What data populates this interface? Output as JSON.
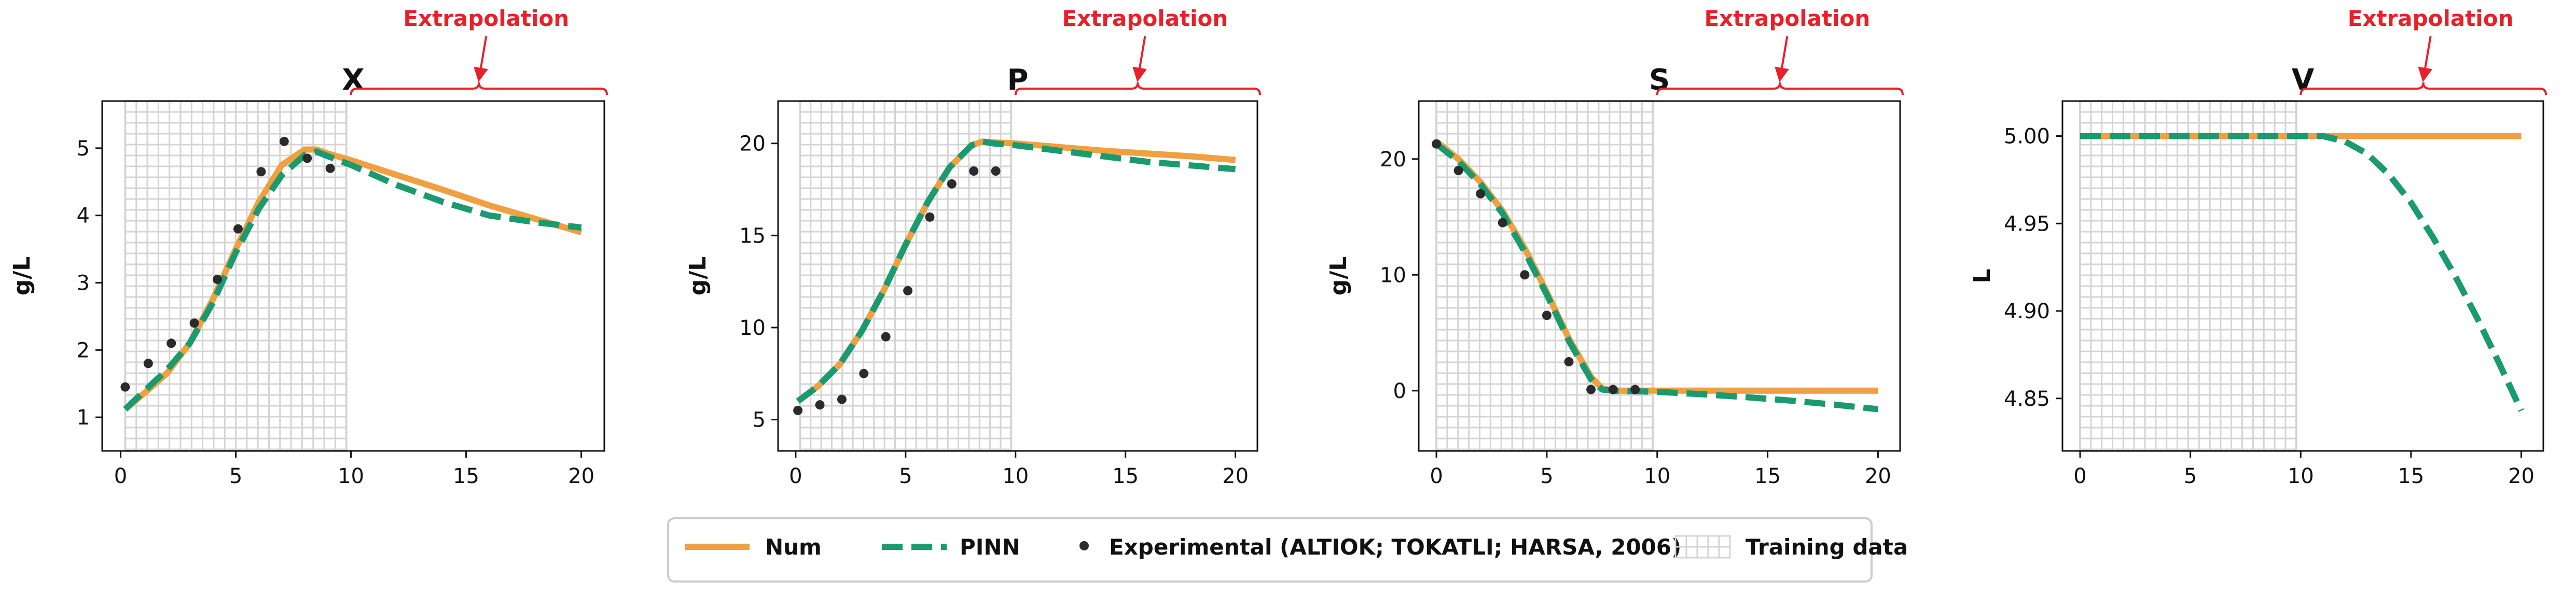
{
  "colors": {
    "num": "#f0a040",
    "pinn": "#1a9a6e",
    "experimental": "#2b2b2b",
    "training_grid": "#d4d4d4",
    "annotation": "#e8202a"
  },
  "legend": {
    "num": "Num",
    "pinn": "PINN",
    "experimental": "Experimental (ALTIOK; TOKATLI; HARSA, 2006)",
    "training": "Training data"
  },
  "annotation_label": "Extrapolation",
  "chart_data": [
    {
      "type": "line",
      "title": "X",
      "xlabel": "",
      "ylabel": "g/L",
      "xlim": [
        -0.8,
        21
      ],
      "ylim": [
        0.5,
        5.7
      ],
      "x_ticks": [
        0,
        5,
        10,
        15,
        20
      ],
      "y_ticks": [
        1,
        2,
        3,
        4,
        5
      ],
      "training_region": [
        0.2,
        9.8
      ],
      "extrapolation_region": [
        10,
        21
      ],
      "grid": "training region only",
      "series": [
        {
          "name": "Num",
          "style": "solid",
          "x": [
            0.2,
            1,
            2,
            3,
            4,
            5,
            6,
            7,
            8,
            8.5,
            9,
            10,
            12,
            14,
            16,
            18,
            20
          ],
          "y": [
            1.12,
            1.35,
            1.65,
            2.1,
            2.75,
            3.5,
            4.2,
            4.75,
            4.98,
            4.98,
            4.92,
            4.82,
            4.6,
            4.38,
            4.15,
            3.95,
            3.75
          ]
        },
        {
          "name": "PINN",
          "style": "dashed",
          "x": [
            0.2,
            1,
            2,
            3,
            4,
            5,
            6,
            7,
            8,
            8.5,
            9,
            10,
            12,
            14,
            16,
            18,
            20
          ],
          "y": [
            1.12,
            1.38,
            1.7,
            2.1,
            2.7,
            3.45,
            4.1,
            4.6,
            4.9,
            4.95,
            4.88,
            4.75,
            4.45,
            4.2,
            4.0,
            3.9,
            3.82
          ]
        },
        {
          "name": "Experimental (ALTIOK; TOKATLI; HARSA, 2006)",
          "style": "points",
          "x": [
            0.2,
            1.2,
            2.2,
            3.2,
            4.2,
            5.1,
            6.1,
            7.1,
            8.1,
            9.1
          ],
          "y": [
            1.45,
            1.8,
            2.1,
            2.4,
            3.05,
            3.8,
            4.65,
            5.1,
            4.85,
            4.7
          ]
        }
      ]
    },
    {
      "type": "line",
      "title": "P",
      "xlabel": "",
      "ylabel": "g/L",
      "xlim": [
        -0.8,
        21
      ],
      "ylim": [
        3.3,
        22.3
      ],
      "x_ticks": [
        0,
        5,
        10,
        15,
        20
      ],
      "y_ticks": [
        5,
        10,
        15,
        20
      ],
      "training_region": [
        0.2,
        9.8
      ],
      "extrapolation_region": [
        10,
        21
      ],
      "grid": "training region only",
      "series": [
        {
          "name": "Num",
          "style": "solid",
          "x": [
            0.1,
            1,
            2,
            3,
            4,
            5,
            6,
            7,
            8,
            8.5,
            9,
            10,
            12,
            14,
            16,
            18,
            20
          ],
          "y": [
            6.0,
            6.8,
            8.0,
            9.8,
            12.0,
            14.5,
            16.8,
            18.7,
            19.9,
            20.1,
            20.05,
            20.0,
            19.8,
            19.6,
            19.45,
            19.3,
            19.1
          ]
        },
        {
          "name": "PINN",
          "style": "dashed",
          "x": [
            0.1,
            1,
            2,
            3,
            4,
            5,
            6,
            7,
            8,
            8.5,
            9,
            10,
            12,
            14,
            16,
            18,
            20
          ],
          "y": [
            6.0,
            6.8,
            8.0,
            9.8,
            12.0,
            14.5,
            16.8,
            18.7,
            19.9,
            20.1,
            20.0,
            19.9,
            19.6,
            19.3,
            19.0,
            18.8,
            18.6
          ]
        },
        {
          "name": "Experimental (ALTIOK; TOKATLI; HARSA, 2006)",
          "style": "points",
          "x": [
            0.1,
            1.1,
            2.1,
            3.1,
            4.1,
            5.1,
            6.1,
            7.1,
            8.1,
            9.1
          ],
          "y": [
            5.5,
            5.8,
            6.1,
            7.5,
            9.5,
            12.0,
            16.0,
            17.8,
            18.5,
            18.5
          ]
        }
      ]
    },
    {
      "type": "line",
      "title": "S",
      "xlabel": "",
      "ylabel": "g/L",
      "xlim": [
        -0.8,
        21
      ],
      "ylim": [
        -5.2,
        25
      ],
      "x_ticks": [
        0,
        5,
        10,
        15,
        20
      ],
      "y_ticks": [
        0,
        10,
        20
      ],
      "training_region": [
        0,
        9.8
      ],
      "extrapolation_region": [
        10,
        21
      ],
      "grid": "training region only",
      "series": [
        {
          "name": "Num",
          "style": "solid",
          "x": [
            0,
            1,
            2,
            3,
            4,
            5,
            6,
            7,
            7.5,
            8,
            9,
            10,
            12,
            14,
            16,
            18,
            20
          ],
          "y": [
            21.5,
            20.0,
            18.0,
            15.5,
            12.3,
            8.5,
            4.5,
            1.2,
            0.2,
            0.0,
            0.0,
            0.0,
            0.0,
            0.0,
            0.0,
            0.0,
            0.0
          ]
        },
        {
          "name": "PINN",
          "style": "dashed",
          "x": [
            0,
            1,
            2,
            3,
            4,
            5,
            6,
            7,
            7.5,
            8,
            9,
            10,
            12,
            14,
            16,
            18,
            20
          ],
          "y": [
            21.3,
            19.8,
            17.8,
            15.3,
            12.0,
            8.3,
            4.3,
            1.0,
            0.1,
            0.0,
            -0.05,
            -0.1,
            -0.3,
            -0.55,
            -0.85,
            -1.2,
            -1.6
          ]
        },
        {
          "name": "Experimental (ALTIOK; TOKATLI; HARSA, 2006)",
          "style": "points",
          "x": [
            0,
            1,
            2,
            3,
            4,
            5,
            6,
            7,
            8,
            9
          ],
          "y": [
            21.3,
            19.0,
            17.0,
            14.5,
            10.0,
            6.5,
            2.5,
            0.1,
            0.1,
            0.1
          ]
        }
      ]
    },
    {
      "type": "line",
      "title": "V",
      "xlabel": "",
      "ylabel": "L",
      "xlim": [
        -0.8,
        21
      ],
      "ylim": [
        4.82,
        5.02
      ],
      "x_ticks": [
        0,
        5,
        10,
        15,
        20
      ],
      "y_ticks": [
        4.85,
        4.9,
        4.95,
        5.0
      ],
      "y_tick_labels": [
        "4.85",
        "4.90",
        "4.95",
        "5.00"
      ],
      "training_region": [
        0,
        9.8
      ],
      "extrapolation_region": [
        10,
        21
      ],
      "grid": "training region only",
      "series": [
        {
          "name": "Num",
          "style": "solid",
          "x": [
            0,
            5,
            10,
            15,
            20
          ],
          "y": [
            5.0,
            5.0,
            5.0,
            5.0,
            5.0
          ]
        },
        {
          "name": "PINN",
          "style": "dashed",
          "x": [
            0,
            5,
            10,
            11,
            12,
            13,
            14,
            15,
            16,
            17,
            18,
            19,
            20
          ],
          "y": [
            5.0,
            5.0,
            5.0,
            5.0,
            4.997,
            4.99,
            4.978,
            4.962,
            4.942,
            4.92,
            4.896,
            4.87,
            4.843
          ]
        }
      ]
    }
  ]
}
